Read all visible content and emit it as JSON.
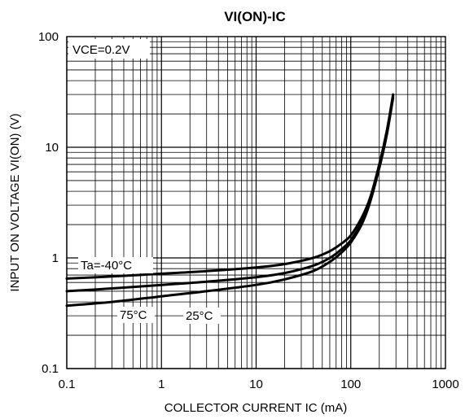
{
  "chart_data": {
    "type": "line",
    "title": "VI(ON)-IC",
    "xlabel": "COLLECTOR CURRENT IC (mA)",
    "ylabel": "INPUT ON VOLTAGE VI(ON) (V)",
    "xscale": "log",
    "yscale": "log",
    "xlim": [
      0.1,
      1000
    ],
    "ylim": [
      0.1,
      100
    ],
    "grid": true,
    "x_ticks": [
      "0.1",
      "1",
      "10",
      "100",
      "1000"
    ],
    "y_ticks": [
      "0.1",
      "1",
      "10",
      "100"
    ],
    "annotations": {
      "condition": "VCE=0.2V",
      "t_minus40": "Ta=-40°C",
      "t_75": "75°C",
      "t_25": "25°C"
    },
    "series": [
      {
        "name": "Ta=-40°C",
        "x": [
          0.1,
          0.3,
          1,
          3,
          10,
          20,
          40,
          60,
          80,
          100,
          130,
          160,
          200,
          240,
          280
        ],
        "y": [
          0.65,
          0.68,
          0.72,
          0.76,
          0.82,
          0.88,
          1.0,
          1.15,
          1.35,
          1.6,
          2.3,
          3.5,
          7.0,
          14,
          30
        ]
      },
      {
        "name": "25°C",
        "x": [
          0.1,
          0.3,
          1,
          3,
          10,
          20,
          40,
          60,
          80,
          100,
          130,
          160,
          200,
          240,
          280
        ],
        "y": [
          0.5,
          0.53,
          0.57,
          0.61,
          0.67,
          0.73,
          0.85,
          1.0,
          1.2,
          1.45,
          2.1,
          3.3,
          6.5,
          13,
          28
        ]
      },
      {
        "name": "75°C",
        "x": [
          0.1,
          0.3,
          1,
          3,
          10,
          20,
          40,
          60,
          80,
          100,
          130,
          160,
          200,
          240,
          280
        ],
        "y": [
          0.37,
          0.4,
          0.45,
          0.5,
          0.57,
          0.64,
          0.76,
          0.92,
          1.12,
          1.38,
          2.0,
          3.2,
          6.5,
          13,
          29
        ]
      }
    ]
  }
}
